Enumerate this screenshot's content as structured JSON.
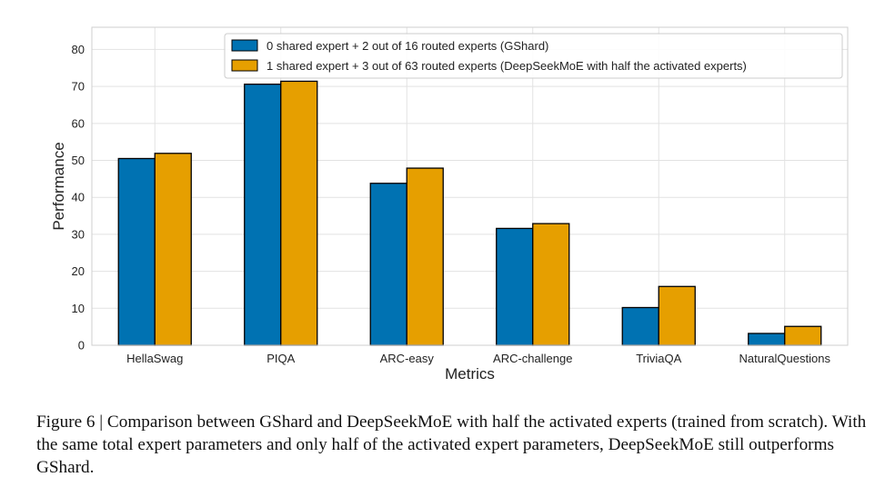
{
  "chart_data": {
    "type": "bar",
    "categories": [
      "HellaSwag",
      "PIQA",
      "ARC-easy",
      "ARC-challenge",
      "TriviaQA",
      "NaturalQuestions"
    ],
    "series": [
      {
        "name": "0 shared expert + 2 out of 16 routed experts (GShard)",
        "color": "#0072B2",
        "values": [
          50.5,
          70.6,
          43.8,
          31.6,
          10.2,
          3.2
        ]
      },
      {
        "name": "1 shared expert + 3 out of 63 routed experts (DeepSeekMoE with half the activated experts)",
        "color": "#E69F00",
        "values": [
          51.9,
          71.4,
          47.9,
          32.9,
          15.9,
          5.1
        ]
      }
    ],
    "xlabel": "Metrics",
    "ylabel": "Performance",
    "ylim": [
      0,
      86
    ],
    "yticks": [
      0,
      10,
      20,
      30,
      40,
      50,
      60,
      70,
      80
    ],
    "grid": true,
    "legend_position": "top-center"
  },
  "caption": "Figure 6 | Comparison between GShard and DeepSeekMoE with half the activated experts (trained from scratch). With the same total expert parameters and only half of the activated expert parameters, DeepSeekMoE still outperforms GShard."
}
